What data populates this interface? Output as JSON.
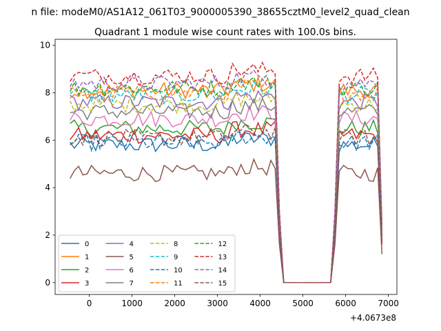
{
  "suptitle": "n file: modeM0/AS1A12_061T03_9000005390_38655cztM0_level2_quad_clean",
  "chart_data": {
    "type": "line",
    "title": "Quadrant 1 module wise count rates with 100.0s bins.",
    "xlabel": "",
    "ylabel": "",
    "x_offset_label": "+4.0673e8",
    "xlim": [
      -800,
      7200
    ],
    "ylim": [
      -0.5,
      10.25
    ],
    "xticks": [
      0,
      1000,
      2000,
      3000,
      4000,
      5000,
      6000,
      7000
    ],
    "yticks": [
      0,
      2,
      4,
      6,
      8,
      10
    ],
    "grid": false,
    "legend_position": "lower-left",
    "legend_columns": 4,
    "colors": [
      "#1f77b4",
      "#ff7f0e",
      "#2ca02c",
      "#d62728",
      "#9467bd",
      "#8c564b",
      "#e377c2",
      "#7f7f7f",
      "#bcbd22",
      "#17becf"
    ],
    "series": [
      {
        "name": "0",
        "dash": false,
        "base": 5.8,
        "end": 1.7
      },
      {
        "name": "1",
        "dash": false,
        "base": 8.1,
        "end": 2.3
      },
      {
        "name": "2",
        "dash": false,
        "base": 6.5,
        "end": 1.9
      },
      {
        "name": "3",
        "dash": false,
        "base": 6.2,
        "end": 1.6
      },
      {
        "name": "4",
        "dash": false,
        "base": 7.6,
        "end": 2.0
      },
      {
        "name": "5",
        "dash": false,
        "base": 4.6,
        "end": 1.2
      },
      {
        "name": "6",
        "dash": false,
        "base": 6.9,
        "end": 1.9
      },
      {
        "name": "7",
        "dash": false,
        "base": 7.2,
        "end": 2.0
      },
      {
        "name": "8",
        "dash": true,
        "base": 7.5,
        "end": 2.0
      },
      {
        "name": "9",
        "dash": true,
        "base": 7.9,
        "end": 2.1
      },
      {
        "name": "10",
        "dash": true,
        "base": 5.9,
        "end": 1.8
      },
      {
        "name": "11",
        "dash": true,
        "base": 8.0,
        "end": 2.2
      },
      {
        "name": "12",
        "dash": true,
        "base": 8.2,
        "end": 2.3
      },
      {
        "name": "13",
        "dash": true,
        "base": 8.7,
        "end": 2.5
      },
      {
        "name": "14",
        "dash": true,
        "base": 8.4,
        "end": 2.4
      },
      {
        "name": "15",
        "dash": true,
        "base": 6.1,
        "end": 1.8
      }
    ],
    "x": [
      -450,
      -350,
      -250,
      -150,
      -50,
      50,
      150,
      250,
      350,
      450,
      550,
      650,
      750,
      850,
      950,
      1050,
      1150,
      1250,
      1350,
      1450,
      1550,
      1650,
      1750,
      1850,
      1950,
      2050,
      2150,
      2250,
      2350,
      2450,
      2550,
      2650,
      2750,
      2850,
      2950,
      3050,
      3150,
      3250,
      3350,
      3450,
      3550,
      3650,
      3750,
      3850,
      3950,
      4050,
      4150,
      4250,
      4350,
      4450,
      4550,
      4650,
      4750,
      4850,
      4950,
      5050,
      5150,
      5250,
      5350,
      5450,
      5550,
      5650,
      5750,
      5850,
      5950,
      6050,
      6150,
      6250,
      6350,
      6450,
      6550,
      6650,
      6750,
      6850
    ],
    "active_segments": [
      [
        -450,
        4400
      ],
      [
        5850,
        6750
      ]
    ],
    "gap_range": [
      4500,
      5700
    ]
  }
}
